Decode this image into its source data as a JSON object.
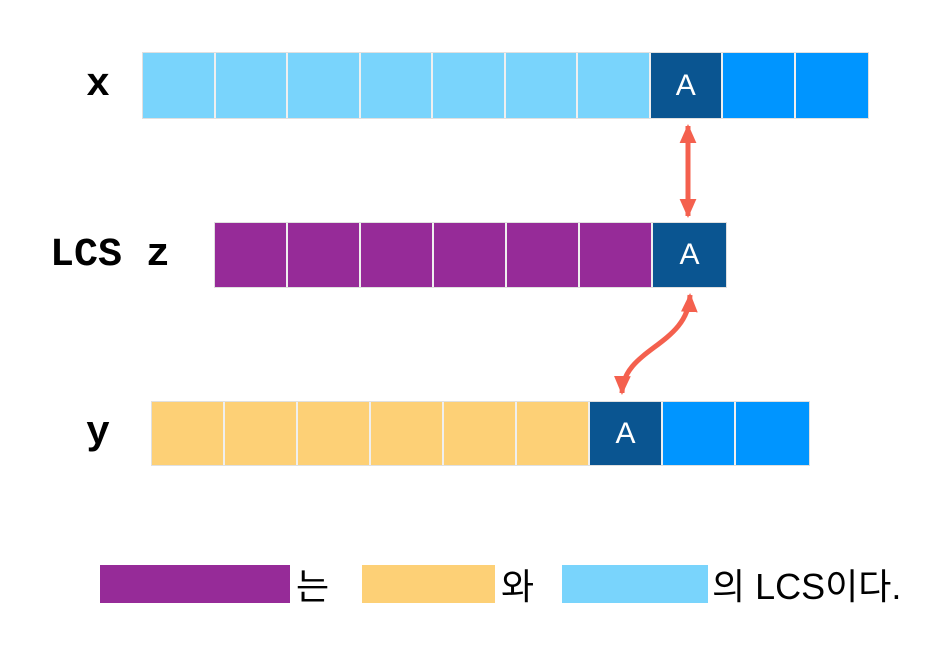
{
  "colors": {
    "light_blue": "#79D4FC",
    "bright_blue": "#0095FF",
    "dark_blue": "#0A5591",
    "purple": "#962B98",
    "orange": "#FDD076",
    "arrow": "#F4604E"
  },
  "matched_char": "A",
  "rows": [
    {
      "id": "x",
      "label": "x",
      "cells": [
        {
          "color": "light_blue"
        },
        {
          "color": "light_blue"
        },
        {
          "color": "light_blue"
        },
        {
          "color": "light_blue"
        },
        {
          "color": "light_blue"
        },
        {
          "color": "light_blue"
        },
        {
          "color": "light_blue"
        },
        {
          "color": "dark_blue",
          "label": "A"
        },
        {
          "color": "bright_blue"
        },
        {
          "color": "bright_blue"
        }
      ]
    },
    {
      "id": "z",
      "label": "LCS z",
      "cells": [
        {
          "color": "purple"
        },
        {
          "color": "purple"
        },
        {
          "color": "purple"
        },
        {
          "color": "purple"
        },
        {
          "color": "purple"
        },
        {
          "color": "purple"
        },
        {
          "color": "dark_blue",
          "label": "A"
        }
      ]
    },
    {
      "id": "y",
      "label": "y",
      "cells": [
        {
          "color": "orange"
        },
        {
          "color": "orange"
        },
        {
          "color": "orange"
        },
        {
          "color": "orange"
        },
        {
          "color": "orange"
        },
        {
          "color": "orange"
        },
        {
          "color": "dark_blue",
          "label": "A"
        },
        {
          "color": "bright_blue"
        },
        {
          "color": "bright_blue"
        }
      ]
    }
  ],
  "arrows": [
    {
      "id": "x-z",
      "style": "straight-double-headed",
      "connects": "x match cell to z match cell"
    },
    {
      "id": "z-y",
      "style": "curved-double-headed",
      "connects": "z match cell to y match cell"
    }
  ],
  "legend": {
    "items": [
      {
        "color": "purple",
        "represents": "z",
        "text": "는"
      },
      {
        "color": "orange",
        "represents": "y",
        "text": "와"
      },
      {
        "color": "light_blue",
        "represents": "x",
        "text": "의 LCS이다."
      }
    ]
  }
}
